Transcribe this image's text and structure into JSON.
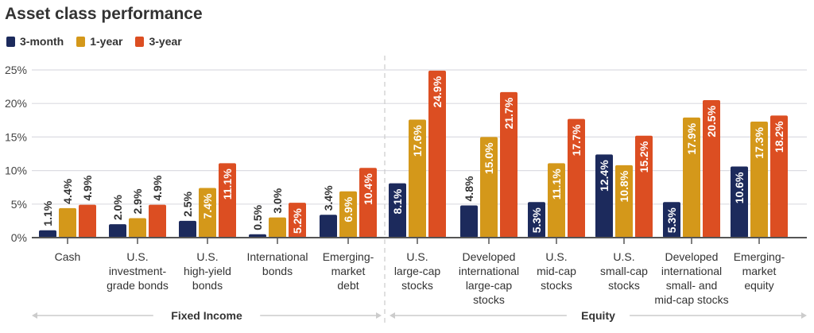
{
  "chart_data": {
    "type": "bar",
    "title": "Asset class performance",
    "categories": [
      "Cash",
      "U.S.|investment-|grade bonds",
      "U.S.|high-yield|bonds",
      "International|bonds",
      "Emerging-|market|debt",
      "U.S.|large-cap|stocks",
      "Developed|international|large-cap|stocks",
      "U.S.|mid-cap|stocks",
      "U.S.|small-cap|stocks",
      "Developed|international|small- and|mid-cap stocks",
      "Emerging-|market|equity"
    ],
    "groups": [
      {
        "label": "Fixed Income",
        "categories": 5
      },
      {
        "label": "Equity",
        "categories": 6
      }
    ],
    "series": [
      {
        "name": "3-month",
        "color": "#1c2a5c",
        "values": [
          1.1,
          2.0,
          2.5,
          0.5,
          3.4,
          8.1,
          4.8,
          5.3,
          12.4,
          5.3,
          10.6
        ],
        "labels": [
          "1.1%",
          "2.0%",
          "2.5%",
          "0.5%",
          "3.4%",
          "8.1%",
          "4.8%",
          "5.3%",
          "12.4%",
          "5.3%",
          "10.6%"
        ]
      },
      {
        "name": "1-year",
        "color": "#d4981a",
        "values": [
          4.4,
          2.9,
          7.4,
          3.0,
          6.9,
          17.6,
          15.0,
          11.1,
          10.8,
          17.9,
          17.3
        ],
        "labels": [
          "4.4%",
          "2.9%",
          "7.4%",
          "3.0%",
          "6.9%",
          "17.6%",
          "15.0%",
          "11.1%",
          "10.8%",
          "17.9%",
          "17.3%"
        ]
      },
      {
        "name": "3-year",
        "color": "#dc4e22",
        "values": [
          4.9,
          4.9,
          11.1,
          5.2,
          10.4,
          24.9,
          21.7,
          17.7,
          15.2,
          20.5,
          18.2
        ],
        "labels": [
          "4.9%",
          "4.9%",
          "11.1%",
          "5.2%",
          "10.4%",
          "24.9%",
          "21.7%",
          "17.7%",
          "15.2%",
          "20.5%",
          "18.2%"
        ]
      }
    ],
    "yticks": [
      "0%",
      "5%",
      "10%",
      "15%",
      "20%",
      "25%"
    ],
    "ylim": [
      0,
      25
    ],
    "grid": true,
    "legend": "top-left"
  }
}
